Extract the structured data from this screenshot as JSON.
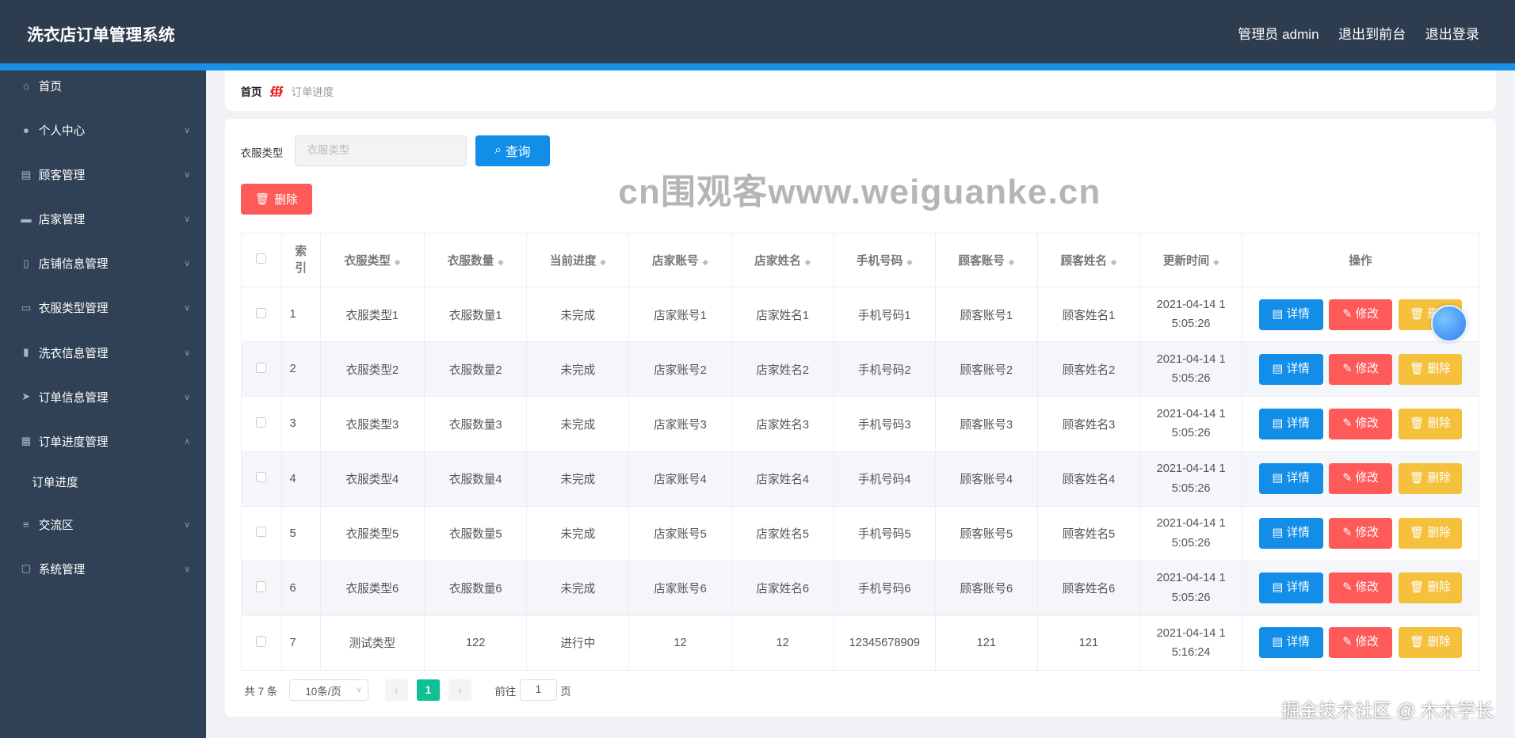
{
  "header": {
    "title": "洗衣店订单管理系统",
    "admin": "管理员 admin",
    "front": "退出到前台",
    "logout": "退出登录"
  },
  "sidebar": {
    "items": [
      {
        "label": "首页",
        "icon": "home-icon",
        "chev": ""
      },
      {
        "label": "个人中心",
        "icon": "user-icon",
        "chev": "∨"
      },
      {
        "label": "顾客管理",
        "icon": "clipboard-icon",
        "chev": "∨"
      },
      {
        "label": "店家管理",
        "icon": "briefcase-icon",
        "chev": "∨"
      },
      {
        "label": "店铺信息管理",
        "icon": "phone-icon",
        "chev": "∨"
      },
      {
        "label": "衣服类型管理",
        "icon": "card-icon",
        "chev": "∨"
      },
      {
        "label": "洗衣信息管理",
        "icon": "bar-chart-icon",
        "chev": "∨"
      },
      {
        "label": "订单信息管理",
        "icon": "send-icon",
        "chev": "∨"
      },
      {
        "label": "订单进度管理",
        "icon": "grid-icon",
        "chev": "∧"
      },
      {
        "label": "订单进度",
        "icon": "",
        "chev": ""
      },
      {
        "label": "交流区",
        "icon": "list-icon",
        "chev": "∨"
      },
      {
        "label": "系统管理",
        "icon": "chat-icon",
        "chev": "∨"
      }
    ]
  },
  "breadcrumb": {
    "home": "首页",
    "sep": "∰",
    "current": "订单进度"
  },
  "search": {
    "label": "衣服类型",
    "placeholder": "衣服类型",
    "button": "查询"
  },
  "delete_button": "删除",
  "table": {
    "headers": [
      "索引",
      "衣服类型",
      "衣服数量",
      "当前进度",
      "店家账号",
      "店家姓名",
      "手机号码",
      "顾客账号",
      "顾客姓名",
      "更新时间",
      "操作"
    ],
    "rows": [
      [
        "1",
        "衣服类型1",
        "衣服数量1",
        "未完成",
        "店家账号1",
        "店家姓名1",
        "手机号码1",
        "顾客账号1",
        "顾客姓名1",
        "2021-04-14 15:05:26"
      ],
      [
        "2",
        "衣服类型2",
        "衣服数量2",
        "未完成",
        "店家账号2",
        "店家姓名2",
        "手机号码2",
        "顾客账号2",
        "顾客姓名2",
        "2021-04-14 15:05:26"
      ],
      [
        "3",
        "衣服类型3",
        "衣服数量3",
        "未完成",
        "店家账号3",
        "店家姓名3",
        "手机号码3",
        "顾客账号3",
        "顾客姓名3",
        "2021-04-14 15:05:26"
      ],
      [
        "4",
        "衣服类型4",
        "衣服数量4",
        "未完成",
        "店家账号4",
        "店家姓名4",
        "手机号码4",
        "顾客账号4",
        "顾客姓名4",
        "2021-04-14 15:05:26"
      ],
      [
        "5",
        "衣服类型5",
        "衣服数量5",
        "未完成",
        "店家账号5",
        "店家姓名5",
        "手机号码5",
        "顾客账号5",
        "顾客姓名5",
        "2021-04-14 15:05:26"
      ],
      [
        "6",
        "衣服类型6",
        "衣服数量6",
        "未完成",
        "店家账号6",
        "店家姓名6",
        "手机号码6",
        "顾客账号6",
        "顾客姓名6",
        "2021-04-14 15:05:26"
      ],
      [
        "7",
        "测试类型",
        "122",
        "进行中",
        "12",
        "12",
        "12345678909",
        "121",
        "121",
        "2021-04-14 15:16:24"
      ]
    ],
    "actions": {
      "detail": "详情",
      "edit": "修改",
      "delete": "删除"
    }
  },
  "pagination": {
    "total": "共 7 条",
    "page_size": "10条/页",
    "current": "1",
    "goto": "前往",
    "goto_value": "1",
    "page_unit": "页"
  },
  "watermark": "cn围观客www.weiguanke.cn",
  "credit": "掘金技术社区 @ 木木学长",
  "colors": {
    "header": "#2e3c50",
    "sidebar": "#304156",
    "accent": "#1890e8",
    "danger": "#fe5a5a",
    "warning": "#f5c03b",
    "pager_active": "#0fc095"
  }
}
